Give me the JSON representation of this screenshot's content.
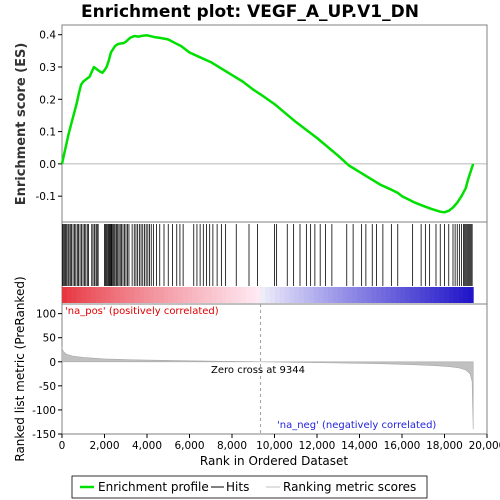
{
  "chart_data": {
    "type": "line",
    "title": "Enrichment plot: VEGF_A_UP.V1_DN",
    "top_panel": {
      "ylabel": "Enrichment score (ES)",
      "ylim": [
        -0.18,
        0.43
      ],
      "yticks": [
        "0.4",
        "0.3",
        "0.2",
        "0.1",
        "0.0",
        "-0.1"
      ],
      "ytick_values": [
        0.4,
        0.3,
        0.2,
        0.1,
        0.0,
        -0.1
      ],
      "series": [
        {
          "name": "Enrichment profile",
          "color": "#00e000",
          "x": [
            0,
            100,
            200,
            300,
            400,
            500,
            600,
            700,
            800,
            900,
            1000,
            1100,
            1200,
            1300,
            1400,
            1500,
            1600,
            1700,
            1800,
            1900,
            2000,
            2100,
            2200,
            2300,
            2400,
            2500,
            2600,
            2700,
            2800,
            2900,
            3000,
            3200,
            3400,
            3600,
            3800,
            4000,
            4200,
            4400,
            4600,
            4800,
            5000,
            5300,
            5600,
            6000,
            6500,
            7000,
            7500,
            8000,
            8500,
            9000,
            9344,
            10000,
            11000,
            12000,
            13000,
            13500,
            14000,
            14500,
            15000,
            15500,
            15800,
            16000,
            16300,
            16600,
            17000,
            17400,
            17800,
            18000,
            18200,
            18400,
            18600,
            18800,
            19000,
            19100,
            19200,
            19300,
            19350
          ],
          "y": [
            0.0,
            0.03,
            0.06,
            0.09,
            0.115,
            0.14,
            0.165,
            0.19,
            0.22,
            0.245,
            0.255,
            0.26,
            0.265,
            0.27,
            0.285,
            0.3,
            0.295,
            0.29,
            0.285,
            0.282,
            0.29,
            0.3,
            0.32,
            0.345,
            0.355,
            0.365,
            0.37,
            0.372,
            0.373,
            0.374,
            0.378,
            0.39,
            0.396,
            0.394,
            0.397,
            0.398,
            0.395,
            0.392,
            0.39,
            0.388,
            0.385,
            0.375,
            0.365,
            0.345,
            0.33,
            0.315,
            0.295,
            0.275,
            0.255,
            0.23,
            0.215,
            0.185,
            0.13,
            0.08,
            0.025,
            -0.005,
            -0.025,
            -0.045,
            -0.065,
            -0.08,
            -0.09,
            -0.1,
            -0.11,
            -0.12,
            -0.13,
            -0.14,
            -0.148,
            -0.15,
            -0.145,
            -0.135,
            -0.12,
            -0.1,
            -0.075,
            -0.05,
            -0.03,
            -0.01,
            0.0
          ]
        }
      ]
    },
    "bottom_panel": {
      "ylabel": "Ranked list metric (PreRanked)",
      "ylim": [
        -150,
        120
      ],
      "yticks": [
        "100",
        "50",
        "0",
        "-50",
        "-100",
        "-150"
      ],
      "ytick_values": [
        100,
        50,
        0,
        -50,
        -100,
        -150
      ],
      "series": [
        {
          "name": "Ranking metric scores",
          "color": "#c0c0c0",
          "x": [
            0,
            50,
            200,
            500,
            1000,
            2000,
            3000,
            4000,
            6000,
            8000,
            9344,
            11000,
            13000,
            15000,
            16500,
            17500,
            18200,
            18700,
            19000,
            19200,
            19300,
            19350
          ],
          "y": [
            30,
            22,
            16,
            12,
            9,
            6,
            4.5,
            3.5,
            2,
            0.8,
            0,
            -1,
            -2.5,
            -4,
            -6,
            -8,
            -10,
            -13,
            -17,
            -25,
            -40,
            -140
          ]
        }
      ],
      "annotations": [
        "'na_pos' (positively correlated)",
        "Zero cross at 9344",
        "'na_neg' (negatively correlated)"
      ]
    },
    "xlabel": "Rank in Ordered Dataset",
    "xlim": [
      0,
      20000
    ],
    "xticks": [
      "0",
      "2,000",
      "4,000",
      "6,000",
      "8,000",
      "10,000",
      "12,000",
      "14,000",
      "16,000",
      "18,000",
      "20,000"
    ],
    "xtick_values": [
      0,
      2000,
      4000,
      6000,
      8000,
      10000,
      12000,
      14000,
      16000,
      18000,
      20000
    ],
    "zero_cross": 9344,
    "n_genes": 19350,
    "hits": [
      30,
      60,
      110,
      160,
      220,
      280,
      330,
      390,
      450,
      520,
      590,
      650,
      720,
      780,
      850,
      920,
      990,
      1060,
      1120,
      1190,
      1250,
      1400,
      1460,
      1530,
      1600,
      1650,
      1700,
      2000,
      2050,
      2100,
      2150,
      2190,
      2230,
      2270,
      2310,
      2350,
      2400,
      2450,
      2500,
      2560,
      2620,
      2680,
      2740,
      2800,
      2870,
      2940,
      3010,
      3080,
      3150,
      3300,
      3400,
      3480,
      3560,
      3640,
      3720,
      3800,
      3880,
      3960,
      4040,
      4120,
      4200,
      4300,
      4450,
      4600,
      4800,
      5000,
      5200,
      5400,
      5550,
      5700,
      6200,
      6350,
      6500,
      6650,
      6800,
      6950,
      7100,
      7300,
      7500,
      7700,
      8200,
      8800,
      9200,
      10000,
      10100,
      10600,
      10900,
      11200,
      11500,
      11700,
      11900,
      12150,
      12400,
      12700,
      13400,
      13700,
      14100,
      14300,
      14600,
      14800,
      15100,
      15500,
      15800,
      16500,
      16900,
      17100,
      17300,
      17600,
      17800,
      18000,
      18200,
      18400,
      18500,
      18600,
      18700,
      18800,
      18900,
      18950,
      19000,
      19050,
      19100,
      19150,
      19200,
      19250,
      19300
    ],
    "legend": [
      "Enrichment profile",
      "Hits",
      "Ranking metric scores"
    ],
    "colors": {
      "enrichment": "#00e000",
      "hits": "#000000",
      "metric": "#c0c0c0",
      "pos_label": "#e00000",
      "neg_label": "#2222dd",
      "band_pos": "#e8303a",
      "band_neg": "#2020e0"
    }
  }
}
